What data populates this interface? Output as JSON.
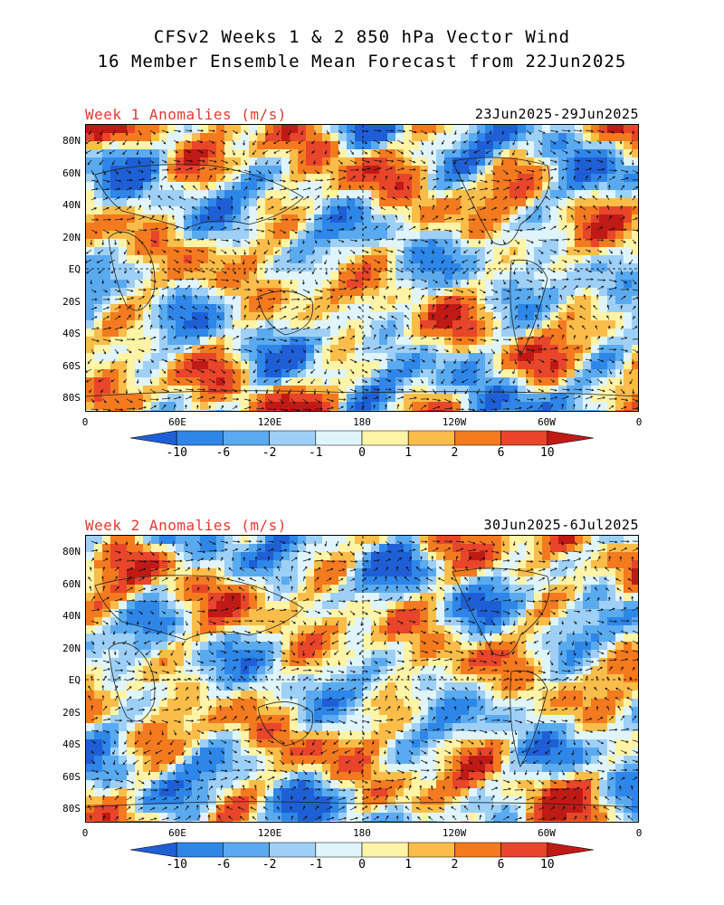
{
  "title": {
    "line1": "CFSv2 Weeks 1 & 2 850 hPa Vector Wind",
    "line2": "16 Member Ensemble Mean Forecast from 22Jun2025"
  },
  "panels": [
    {
      "label": "Week 1 Anomalies (m/s)",
      "dates": "23Jun2025-29Jun2025"
    },
    {
      "label": "Week 2 Anomalies (m/s)",
      "dates": "30Jun2025-6Jul2025"
    }
  ],
  "lat_ticks": [
    "80N",
    "60N",
    "40N",
    "20N",
    "EQ",
    "20S",
    "40S",
    "60S",
    "80S"
  ],
  "lon_ticks": [
    "0",
    "60E",
    "120E",
    "180",
    "120W",
    "60W",
    "0"
  ],
  "colorbar": {
    "levels": [
      "-10",
      "-6",
      "-2",
      "-1",
      "0",
      "1",
      "2",
      "6",
      "10"
    ],
    "colors": [
      "#1f5fd6",
      "#2e86e8",
      "#5aaaf0",
      "#9ed0f7",
      "#dff5fb",
      "#fff3a6",
      "#fbbd4a",
      "#f47a1f",
      "#e8452a",
      "#c01a16"
    ]
  },
  "colors": {
    "label_red": "#e8392f"
  }
}
